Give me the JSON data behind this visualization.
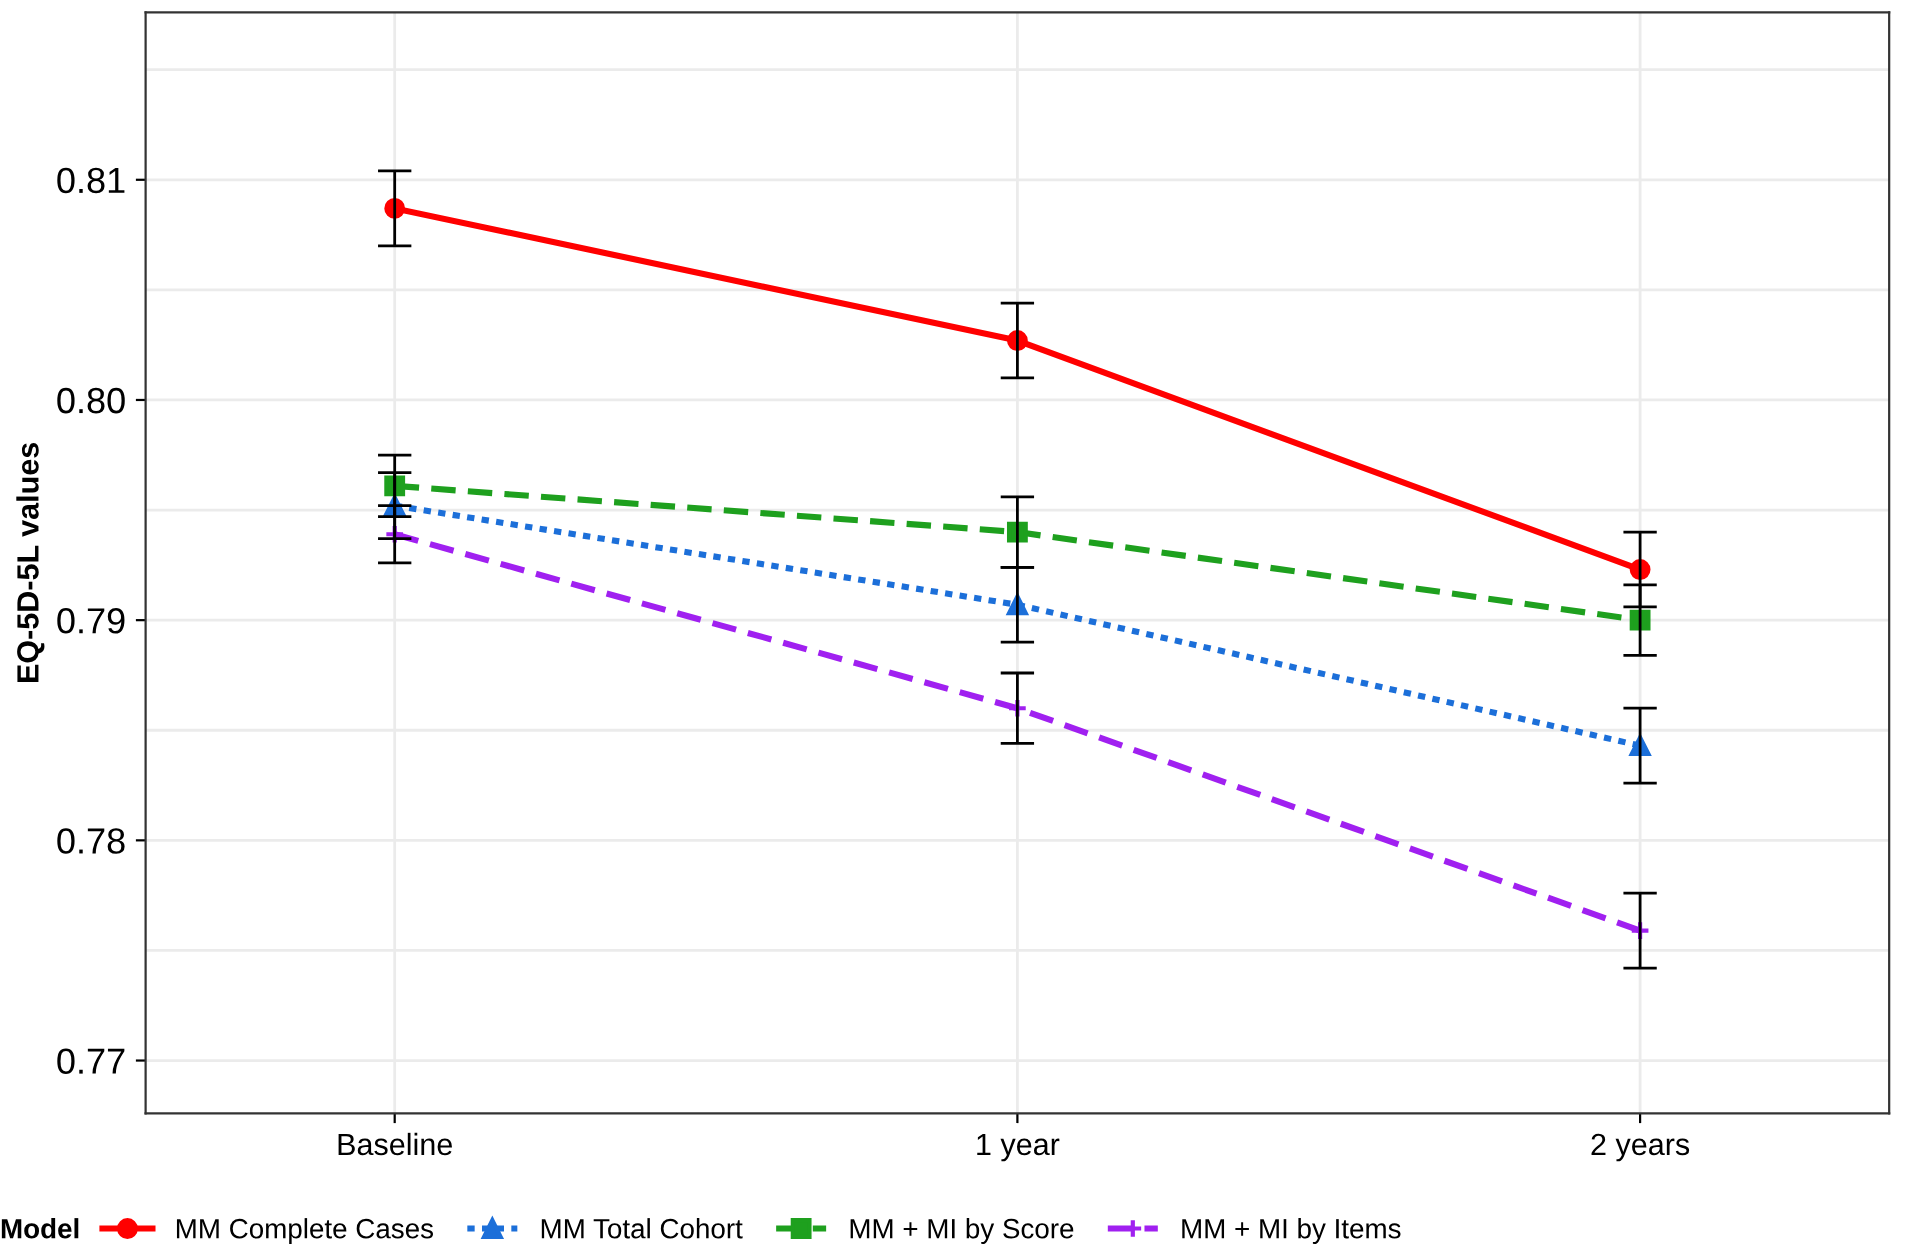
{
  "chart_data": {
    "type": "line",
    "ylabel": "EQ-5D-5L values",
    "legend_title": "Model",
    "legend": "bottom",
    "grid": true,
    "categories": [
      "Baseline",
      "1 year",
      "2 years"
    ],
    "ylim": [
      0.7676,
      0.8176
    ],
    "yticks": [
      {
        "value": 0.77,
        "label": "0.77"
      },
      {
        "value": 0.775,
        "label": null
      },
      {
        "value": 0.78,
        "label": "0.78"
      },
      {
        "value": 0.785,
        "label": null
      },
      {
        "value": 0.79,
        "label": "0.79"
      },
      {
        "value": 0.795,
        "label": null
      },
      {
        "value": 0.8,
        "label": "0.80"
      },
      {
        "value": 0.805,
        "label": null
      },
      {
        "value": 0.81,
        "label": "0.81"
      },
      {
        "value": 0.815,
        "label": null
      }
    ],
    "series": [
      {
        "name": "MM Complete Cases",
        "color": "#ff0000",
        "marker": "circle",
        "line_style": "solid",
        "values": [
          0.8087,
          0.8027,
          0.7923
        ],
        "errors": [
          0.0017,
          0.0017,
          0.0017
        ]
      },
      {
        "name": "MM Total Cohort",
        "color": "#1c6fd9",
        "marker": "triangle",
        "line_style": "dotted",
        "values": [
          0.7952,
          0.7907,
          0.7843
        ],
        "errors": [
          0.0015,
          0.0017,
          0.0017
        ]
      },
      {
        "name": "MM + MI by Score",
        "color": "#1ea01e",
        "marker": "square",
        "line_style": "dashed",
        "values": [
          0.7961,
          0.794,
          0.79
        ],
        "errors": [
          0.0014,
          0.0016,
          0.0016
        ]
      },
      {
        "name": "MM + MI by Items",
        "color": "#a020f0",
        "marker": "cross",
        "line_style": "dashed",
        "values": [
          0.7939,
          0.786,
          0.7759
        ],
        "errors": [
          0.0013,
          0.0016,
          0.0017
        ]
      }
    ]
  }
}
